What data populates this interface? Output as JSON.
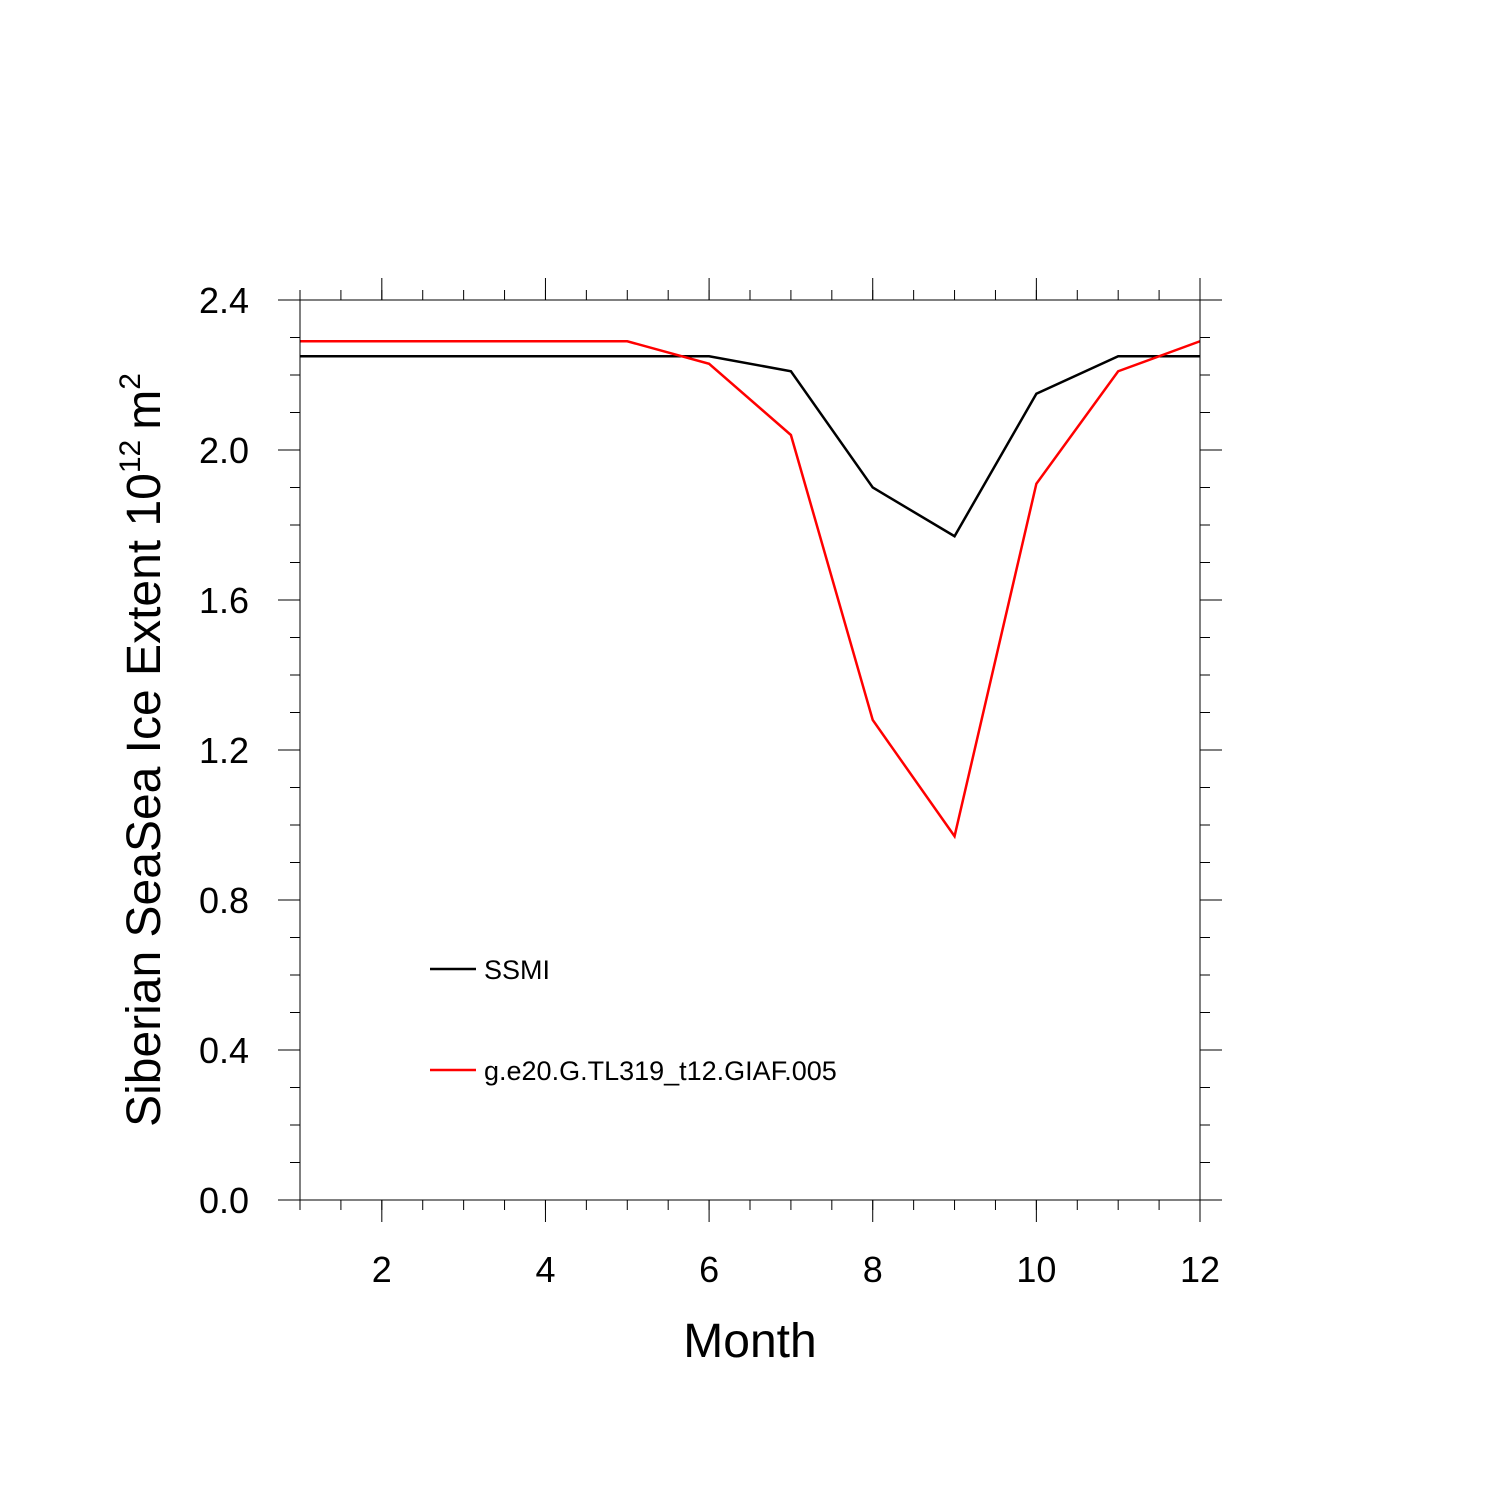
{
  "chart_data": {
    "type": "line",
    "xlabel": "Month",
    "ylabel": "Siberian SeaSea Ice Extent 10",
    "ylabel_exponent": "12",
    "ylabel_unit": "m",
    "ylabel_unit_exponent": "2",
    "xlim": [
      1,
      12
    ],
    "ylim": [
      0.0,
      2.4
    ],
    "x_ticks": [
      2,
      4,
      6,
      8,
      10,
      12
    ],
    "y_ticks": [
      "0.0",
      "0.4",
      "0.8",
      "1.2",
      "1.6",
      "2.0",
      "2.4"
    ],
    "grid": false,
    "legend_position": "bottom-left",
    "x": [
      1,
      2,
      3,
      4,
      5,
      6,
      7,
      8,
      9,
      10,
      11,
      12
    ],
    "series": [
      {
        "name": "SSMI",
        "color": "#000000",
        "values": [
          2.25,
          2.25,
          2.25,
          2.25,
          2.25,
          2.25,
          2.21,
          1.9,
          1.77,
          2.15,
          2.25,
          2.25
        ]
      },
      {
        "name": "g.e20.G.TL319_t12.GIAF.005",
        "color": "#ff0000",
        "values": [
          2.29,
          2.29,
          2.29,
          2.29,
          2.29,
          2.23,
          2.04,
          1.28,
          0.97,
          1.91,
          2.21,
          2.29
        ]
      }
    ]
  }
}
